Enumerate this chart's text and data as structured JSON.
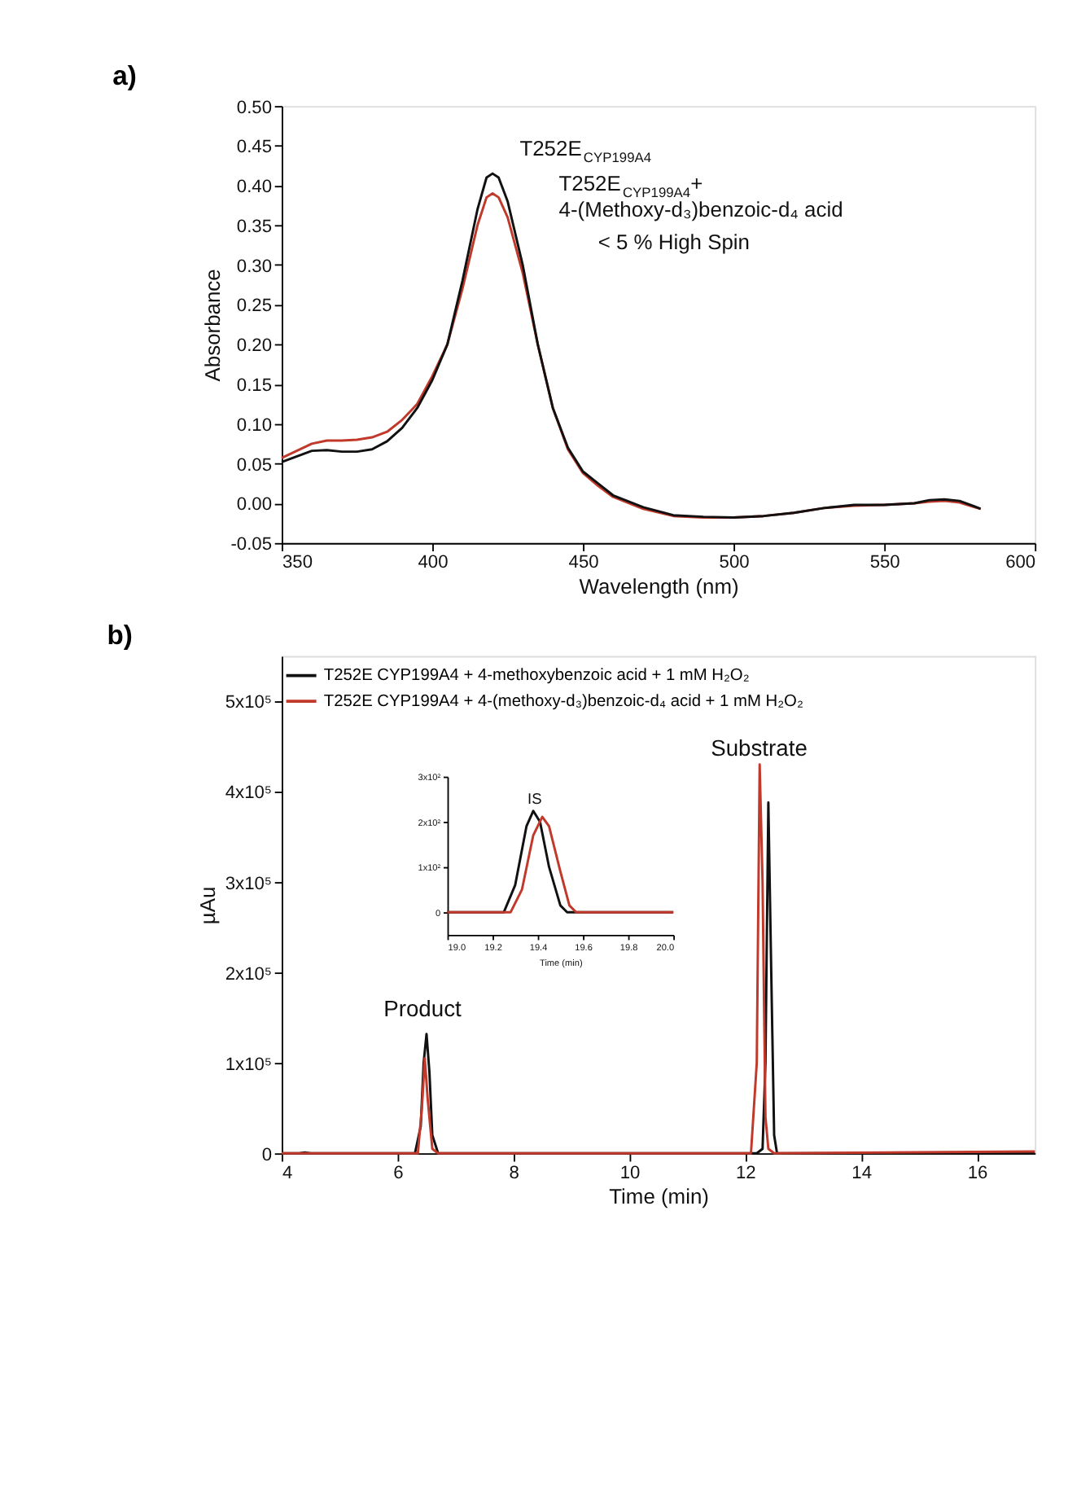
{
  "chart_data": [
    {
      "type": "line",
      "title": "a)",
      "xlabel": "Wavelength (nm)",
      "ylabel": "Absorbance",
      "grid": false,
      "legend": false,
      "xlim": [
        350,
        600
      ],
      "xticks": [
        350,
        400,
        450,
        500,
        550,
        600
      ],
      "ylim": [
        -0.05,
        0.5
      ],
      "yticks": [
        {
          "value": -0.05,
          "label": "-0.05"
        },
        {
          "value": 0,
          "label": "0.00"
        },
        {
          "value": 0.05,
          "label": "0.05"
        },
        {
          "value": 0.1,
          "label": "0.10"
        },
        {
          "value": 0.15,
          "label": "0.15"
        },
        {
          "value": 0.2,
          "label": "0.20"
        },
        {
          "value": 0.25,
          "label": "0.25"
        },
        {
          "value": 0.3,
          "label": "0.30"
        },
        {
          "value": 0.35,
          "label": "0.35"
        },
        {
          "value": 0.4,
          "label": "0.40"
        },
        {
          "value": 0.45,
          "label": "0.45"
        },
        {
          "value": 0.5,
          "label": "0.50"
        }
      ],
      "series": [
        {
          "color": "#c0392b",
          "x": [
            350,
            360,
            365,
            370,
            375,
            380,
            385,
            390,
            395,
            400,
            405,
            410,
            415,
            418,
            420,
            422,
            425,
            430,
            435,
            440,
            445,
            450,
            455,
            460,
            470,
            480,
            490,
            500,
            510,
            520,
            530,
            540,
            550,
            560,
            565,
            570,
            575,
            580,
            582
          ],
          "values": [
            0.057,
            0.075,
            0.079,
            0.079,
            0.08,
            0.083,
            0.09,
            0.105,
            0.125,
            0.16,
            0.2,
            0.27,
            0.35,
            0.385,
            0.39,
            0.385,
            0.36,
            0.29,
            0.2,
            0.12,
            0.068,
            0.038,
            0.022,
            0.008,
            -0.007,
            -0.016,
            -0.018,
            -0.018,
            -0.016,
            -0.012,
            -0.006,
            -0.003,
            -0.002,
            0.0,
            0.002,
            0.003,
            0.001,
            -0.005,
            -0.007
          ]
        },
        {
          "color": "#111111",
          "x": [
            350,
            360,
            365,
            370,
            375,
            380,
            385,
            390,
            395,
            400,
            405,
            410,
            415,
            418,
            420,
            422,
            425,
            430,
            435,
            440,
            445,
            450,
            455,
            460,
            470,
            480,
            490,
            500,
            510,
            520,
            530,
            540,
            550,
            560,
            565,
            570,
            575,
            580,
            582
          ],
          "values": [
            0.052,
            0.066,
            0.067,
            0.065,
            0.065,
            0.068,
            0.078,
            0.095,
            0.12,
            0.155,
            0.2,
            0.28,
            0.37,
            0.41,
            0.415,
            0.41,
            0.38,
            0.3,
            0.2,
            0.12,
            0.07,
            0.04,
            0.025,
            0.01,
            -0.005,
            -0.015,
            -0.017,
            -0.018,
            -0.016,
            -0.012,
            -0.006,
            -0.002,
            -0.002,
            0.0,
            0.004,
            0.005,
            0.003,
            -0.004,
            -0.007
          ]
        }
      ],
      "annotations": [
        {
          "text": "T252E$_{CYP199A4}$",
          "x": 420,
          "y": 0.415
        },
        {
          "text": "T252E$_{CYP199A4}$+\n4-(Methoxy-d₃)benzoic-d₄ acid",
          "x": 422,
          "y": 0.39
        },
        "< 5 % High Spin"
      ]
    },
    {
      "type": "line",
      "title": "b)",
      "xlabel": "Time (min)",
      "ylabel": "µAu",
      "grid": false,
      "legend": "top left",
      "xlim": [
        4,
        17
      ],
      "xticks": [
        4,
        6,
        8,
        10,
        12,
        14,
        16
      ],
      "ylim": [
        0,
        550000
      ],
      "yticks": [
        0,
        {
          "value": 100000,
          "label": "1x10⁵"
        },
        {
          "value": 200000,
          "label": "2x10⁵"
        },
        {
          "value": 300000,
          "label": "3x10⁵"
        },
        {
          "value": 400000,
          "label": "4x10⁵"
        },
        {
          "value": 500000,
          "label": "5x10⁵"
        }
      ],
      "series": [
        {
          "name": "T252E CYP199A4 + 4-methoxybenzoic acid + 1 mM H₂O₂",
          "color": "#111111",
          "x": [
            4,
            4.3,
            4.4,
            4.5,
            6.3,
            6.4,
            6.45,
            6.5,
            6.55,
            6.6,
            6.7,
            12.2,
            12.3,
            12.35,
            12.4,
            12.45,
            12.5,
            12.55,
            17
          ],
          "values": [
            0,
            0,
            1000,
            0,
            0,
            30000,
            100000,
            132000,
            90000,
            20000,
            0,
            0,
            5000,
            100000,
            388000,
            200000,
            20000,
            0,
            0
          ]
        },
        {
          "name": "T252E CYP199A4 + 4-(methoxy-d₃)benzoic-d₄ acid + 1 mM H₂O₂",
          "color": "#c0392b",
          "x": [
            4,
            6.35,
            6.42,
            6.47,
            6.52,
            6.6,
            6.7,
            12.1,
            12.2,
            12.25,
            12.3,
            12.35,
            12.4,
            12.5,
            17
          ],
          "values": [
            0,
            0,
            50000,
            105000,
            60000,
            5000,
            0,
            0,
            100000,
            430000,
            300000,
            40000,
            5000,
            0,
            2000
          ]
        }
      ],
      "annotations": [
        {
          "text": "Product",
          "x": 6.5,
          "y": 132000
        },
        {
          "text": "Substrate",
          "x": 12.35,
          "y": 430000
        }
      ]
    },
    {
      "type": "line",
      "xlabel": "Time (min)",
      "grid": false,
      "xlim": [
        19.0,
        20.0
      ],
      "xticks": [
        {
          "value": 19.0,
          "label": "19.0"
        },
        19.2,
        19.4,
        19.6,
        19.8,
        {
          "value": 20.0,
          "label": "20.0"
        }
      ],
      "ylim": [
        -50,
        300
      ],
      "yticks": [
        0,
        {
          "value": 100,
          "label": "1x10²"
        },
        {
          "value": 200,
          "label": "2x10²"
        },
        {
          "value": 300,
          "label": "3x10²"
        }
      ],
      "series": [
        {
          "color": "#111111",
          "x": [
            19.0,
            19.25,
            19.3,
            19.35,
            19.38,
            19.41,
            19.45,
            19.5,
            19.53,
            20.0
          ],
          "values": [
            0,
            0,
            60,
            190,
            224,
            200,
            100,
            15,
            0,
            0
          ]
        },
        {
          "color": "#c0392b",
          "x": [
            19.0,
            19.28,
            19.33,
            19.38,
            19.42,
            19.45,
            19.5,
            19.54,
            19.57,
            20.0
          ],
          "values": [
            0,
            0,
            50,
            170,
            211,
            190,
            90,
            15,
            0,
            0
          ]
        }
      ],
      "annotations": [
        {
          "text": "IS",
          "x": 19.4,
          "y": 224
        }
      ]
    }
  ]
}
